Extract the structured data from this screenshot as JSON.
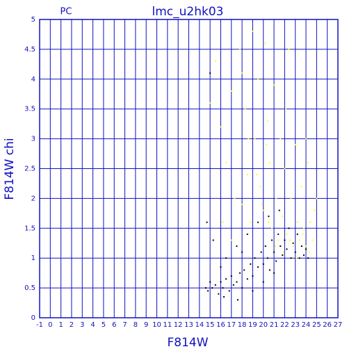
{
  "chart_data": {
    "type": "scatter",
    "title": "lmc_u2hk03",
    "subtitle": "PC",
    "x_label": "F814W",
    "y_label": "F814W chi",
    "xlim": [
      -1,
      27
    ],
    "ylim": [
      0,
      5
    ],
    "xticks": [
      -1,
      0,
      1,
      2,
      3,
      4,
      5,
      6,
      7,
      8,
      9,
      10,
      11,
      12,
      13,
      14,
      15,
      16,
      17,
      18,
      19,
      20,
      21,
      22,
      23,
      24,
      25,
      26,
      27
    ],
    "yticks": [
      0,
      0.5,
      1,
      1.5,
      2,
      2.5,
      3,
      3.5,
      4,
      4.5,
      5
    ],
    "grid": true,
    "axis_color": "#1010c0",
    "series": [
      {
        "color": "#000000",
        "x": [
          14.6,
          14.8,
          15.0,
          15.2,
          15.5,
          15.8,
          16.0,
          16.2,
          16.5,
          16.8,
          17.0,
          17.2,
          17.5,
          17.8,
          18.0,
          18.2,
          18.5,
          18.8,
          19.0,
          19.2,
          19.5,
          19.8,
          20.0,
          20.2,
          20.4,
          20.6,
          20.8,
          21.0,
          21.2,
          21.4,
          21.6,
          21.8,
          22.0,
          22.2,
          22.4,
          22.6,
          22.8,
          23.0,
          23.2,
          23.4,
          23.6,
          23.8,
          24.0,
          24.2,
          14.7,
          15.3,
          16.5,
          17.5,
          18.5,
          19.5,
          20.5,
          21.5,
          15.0,
          16.3,
          17.6,
          19.0,
          20.0,
          21.0,
          18.0,
          16.0
        ],
        "values": [
          0.5,
          0.45,
          0.6,
          0.5,
          0.55,
          0.4,
          0.6,
          0.5,
          0.65,
          0.45,
          0.7,
          0.55,
          0.6,
          0.75,
          0.5,
          0.8,
          0.65,
          0.9,
          0.7,
          1.0,
          0.85,
          1.1,
          0.9,
          1.2,
          1.0,
          0.8,
          1.3,
          1.1,
          0.95,
          1.4,
          1.2,
          1.05,
          1.3,
          1.15,
          1.5,
          1.0,
          1.25,
          1.1,
          1.4,
          1.0,
          1.2,
          1.05,
          1.15,
          1.0,
          1.6,
          1.3,
          1.0,
          1.2,
          1.4,
          1.6,
          1.7,
          1.8,
          4.1,
          0.35,
          0.3,
          0.45,
          0.6,
          0.75,
          1.1,
          0.85
        ]
      },
      {
        "color": "#ffff00",
        "x": [
          15.0,
          15.5,
          16.0,
          16.5,
          17.0,
          17.3,
          17.8,
          18.0,
          18.3,
          18.5,
          18.8,
          19.0,
          19.2,
          19.5,
          19.7,
          20.0,
          20.2,
          20.4,
          20.6,
          20.8,
          21.0,
          21.2,
          21.4,
          21.6,
          21.8,
          22.0,
          22.2,
          22.4,
          22.6,
          22.8,
          23.0,
          23.2,
          23.4,
          23.6,
          23.8,
          24.0,
          24.2,
          24.4,
          24.6,
          24.8,
          25.0,
          19.9,
          20.5,
          21.1,
          21.9,
          22.5,
          23.1,
          23.7,
          24.3,
          20.3,
          18.6,
          19.4,
          22.1,
          24.0,
          16.2,
          17.0,
          18.0
        ],
        "values": [
          3.6,
          4.3,
          3.2,
          2.6,
          3.8,
          2.0,
          4.5,
          4.1,
          3.5,
          2.4,
          1.6,
          4.8,
          3.0,
          4.0,
          2.2,
          1.8,
          4.6,
          3.3,
          2.6,
          1.5,
          3.9,
          2.0,
          1.3,
          3.0,
          1.7,
          2.5,
          1.4,
          4.5,
          2.0,
          1.2,
          2.9,
          1.6,
          1.3,
          2.2,
          1.5,
          1.2,
          2.6,
          1.6,
          1.3,
          1.8,
          2.0,
          1.9,
          1.6,
          1.2,
          1.1,
          1.3,
          1.0,
          1.4,
          1.1,
          2.9,
          3.0,
          2.4,
          3.5,
          3.0,
          1.6,
          1.3,
          1.9
        ]
      }
    ]
  }
}
